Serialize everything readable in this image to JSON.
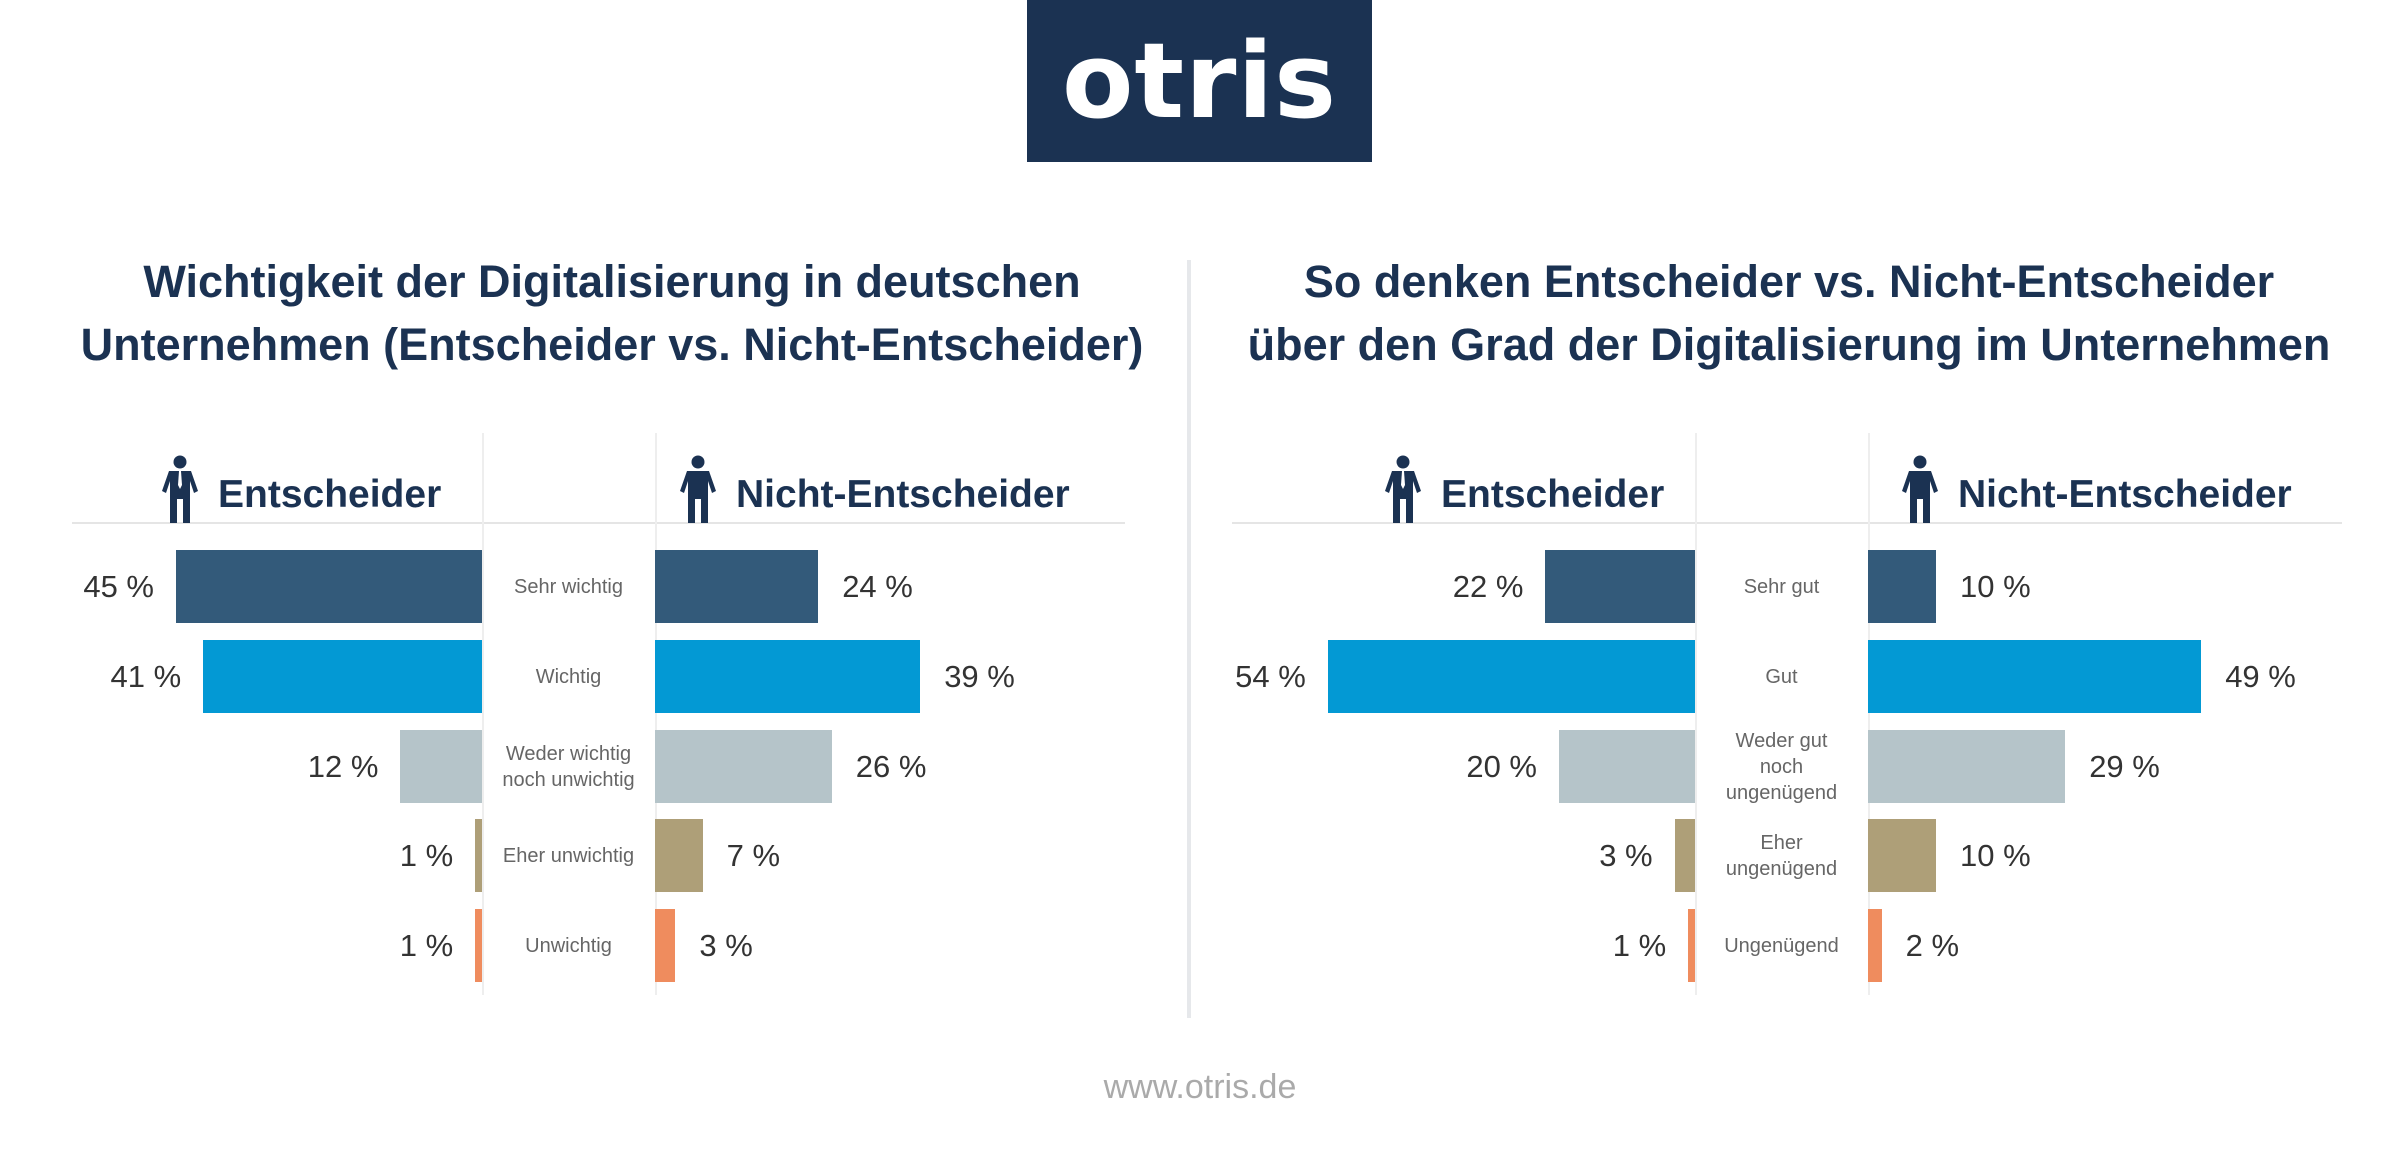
{
  "logo": "otris",
  "footer": "www.otris.de",
  "colors": [
    "#335a7a",
    "#0399d4",
    "#b5c4c9",
    "#ae9f78",
    "#ef8c5e"
  ],
  "chart_data": [
    {
      "type": "bar",
      "title": "Wichtigkeit der Digitalisierung in deutschen Unternehmen (Entscheider vs. Nicht-Entscheider)",
      "title_lines": [
        "Wichtigkeit der Digitalisierung in deutschen",
        "Unternehmen (Entscheider vs. Nicht-Entscheider)"
      ],
      "categories": [
        "Sehr wichtig",
        "Wichtig",
        "Weder wichtig noch unwichtig",
        "Eher unwichtig",
        "Unwichtig"
      ],
      "series": [
        {
          "name": "Entscheider",
          "values": [
            45,
            41,
            12,
            1,
            1
          ]
        },
        {
          "name": "Nicht-Entscheider",
          "values": [
            24,
            39,
            26,
            7,
            3
          ]
        }
      ],
      "unit": "%"
    },
    {
      "type": "bar",
      "title": "So denken Entscheider vs. Nicht-Entscheider über den Grad der Digitalisierung im Unternehmen",
      "title_lines": [
        "So denken Entscheider vs. Nicht-Entscheider",
        "über den Grad der Digitalisierung im Unternehmen"
      ],
      "categories": [
        "Sehr gut",
        "Gut",
        "Weder gut noch ungenügend",
        "Eher ungenügend",
        "Ungenügend"
      ],
      "series": [
        {
          "name": "Entscheider",
          "values": [
            22,
            54,
            20,
            3,
            1
          ]
        },
        {
          "name": "Nicht-Entscheider",
          "values": [
            10,
            49,
            29,
            10,
            2
          ]
        }
      ],
      "unit": "%"
    }
  ]
}
